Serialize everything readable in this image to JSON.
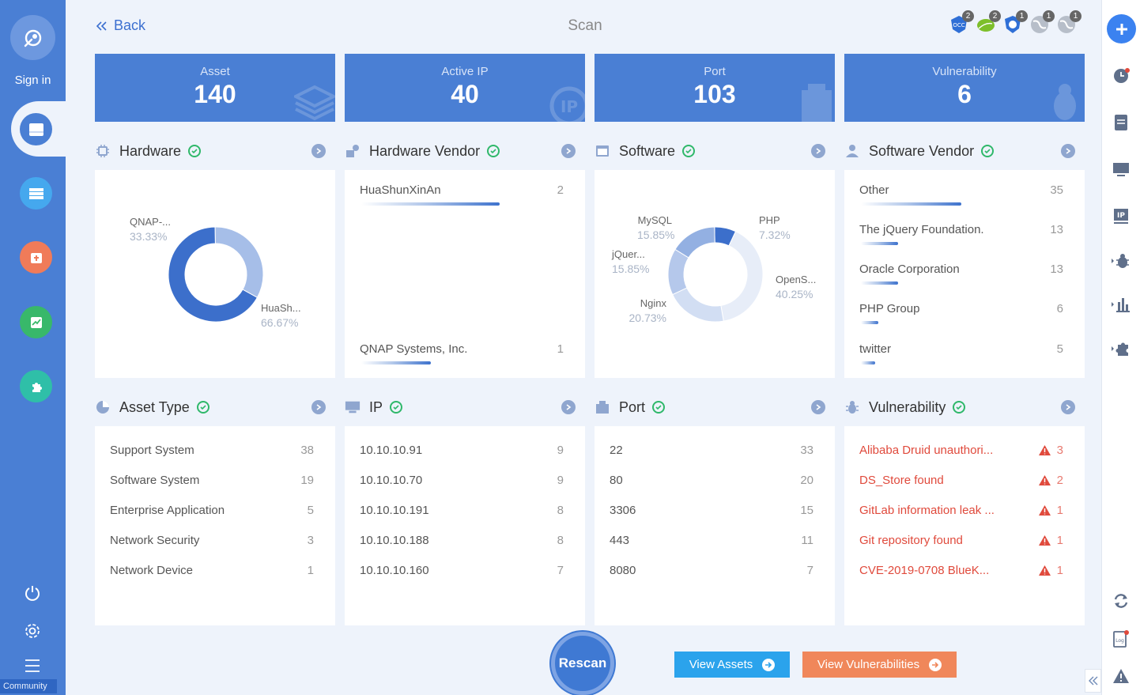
{
  "sidebar": {
    "sign_in": "Sign in",
    "community": "Community",
    "nav_icons": [
      "assets-icon",
      "list-icon",
      "vulnerability-icon",
      "report-icon",
      "plugin-icon"
    ],
    "bottom_icons": [
      "power-icon",
      "settings-icon",
      "menu-icon"
    ]
  },
  "header": {
    "back": "Back",
    "title": "Scan",
    "tools": [
      {
        "icon": "occ-shield-icon",
        "badge": "2",
        "color": "#2f6fd6"
      },
      {
        "icon": "leaf-icon",
        "badge": "2",
        "color": "#7dbf2a"
      },
      {
        "icon": "shield-badge-icon",
        "badge": "1",
        "color": "#2f6fd6"
      },
      {
        "icon": "globe-icon",
        "badge": "1",
        "color": "#b7bec9"
      },
      {
        "icon": "globe-icon",
        "badge": "1",
        "color": "#b7bec9"
      }
    ]
  },
  "stats": [
    {
      "label": "Asset",
      "value": "140"
    },
    {
      "label": "Active IP",
      "value": "40"
    },
    {
      "label": "Port",
      "value": "103"
    },
    {
      "label": "Vulnerability",
      "value": "6"
    }
  ],
  "sections": {
    "hardware": "Hardware",
    "hardware_vendor": "Hardware Vendor",
    "software": "Software",
    "software_vendor": "Software Vendor",
    "asset_type": "Asset Type",
    "ip": "IP",
    "port": "Port",
    "vulnerability": "Vulnerability"
  },
  "chart_data": [
    {
      "type": "pie",
      "name": "Hardware",
      "slices": [
        {
          "label": "HuaSh...",
          "percent": "66.67%",
          "value": 66.67,
          "color": "#3c6fcb"
        },
        {
          "label": "QNAP-...",
          "percent": "33.33%",
          "value": 33.33,
          "color": "#a6bee8"
        }
      ]
    },
    {
      "type": "pie",
      "name": "Software",
      "slices": [
        {
          "label": "PHP",
          "percent": "7.32%",
          "value": 7.32,
          "color": "#3c6fcb"
        },
        {
          "label": "OpenS...",
          "percent": "40.25%",
          "value": 40.25,
          "color": "#e7edf8"
        },
        {
          "label": "Nginx",
          "percent": "20.73%",
          "value": 20.73,
          "color": "#d2def3"
        },
        {
          "label": "jQuer...",
          "percent": "15.85%",
          "value": 15.85,
          "color": "#b5c8eb"
        },
        {
          "label": "MySQL",
          "percent": "15.85%",
          "value": 15.85,
          "color": "#93b0e2"
        }
      ]
    }
  ],
  "hardware_vendor": [
    {
      "name": "HuaShunXinAn",
      "count": "2",
      "ratio": 1.0
    },
    {
      "name": "QNAP Systems, Inc.",
      "count": "1",
      "ratio": 0.5
    }
  ],
  "software_vendor": [
    {
      "name": "Other",
      "count": "35",
      "ratio": 1.0
    },
    {
      "name": "The jQuery Foundation.",
      "count": "13",
      "ratio": 0.37
    },
    {
      "name": "Oracle Corporation",
      "count": "13",
      "ratio": 0.37
    },
    {
      "name": "PHP Group",
      "count": "6",
      "ratio": 0.17
    },
    {
      "name": "twitter",
      "count": "5",
      "ratio": 0.14
    }
  ],
  "asset_type": [
    {
      "name": "Support System",
      "count": "38"
    },
    {
      "name": "Software System",
      "count": "19"
    },
    {
      "name": "Enterprise Application",
      "count": "5"
    },
    {
      "name": "Network Security",
      "count": "3"
    },
    {
      "name": "Network Device",
      "count": "1"
    }
  ],
  "ip": [
    {
      "name": "10.10.10.91",
      "count": "9"
    },
    {
      "name": "10.10.10.70",
      "count": "9"
    },
    {
      "name": "10.10.10.191",
      "count": "8"
    },
    {
      "name": "10.10.10.188",
      "count": "8"
    },
    {
      "name": "10.10.10.160",
      "count": "7"
    }
  ],
  "port": [
    {
      "name": "22",
      "count": "33"
    },
    {
      "name": "80",
      "count": "20"
    },
    {
      "name": "3306",
      "count": "15"
    },
    {
      "name": "443",
      "count": "11"
    },
    {
      "name": "8080",
      "count": "7"
    }
  ],
  "vulnerability": [
    {
      "name": "Alibaba Druid unauthori...",
      "count": "3"
    },
    {
      "name": "DS_Store found",
      "count": "2"
    },
    {
      "name": "GitLab information leak ...",
      "count": "1"
    },
    {
      "name": "Git repository found",
      "count": "1"
    },
    {
      "name": "CVE-2019-0708 BlueK...",
      "count": "1"
    }
  ],
  "actions": {
    "rescan": "Rescan",
    "view_assets": "View Assets",
    "view_vulnerabilities": "View Vulnerabilities",
    "view_assets_color": "#2ba3ec",
    "view_vulnerabilities_color": "#f0875a"
  },
  "right_sidebar_icons": [
    "add-icon",
    "history-icon",
    "document-icon",
    "monitor-icon",
    "ip-icon",
    "bug-icon",
    "bar-chart-icon",
    "puzzle-icon",
    "refresh-icon",
    "log-icon",
    "warning-icon"
  ]
}
